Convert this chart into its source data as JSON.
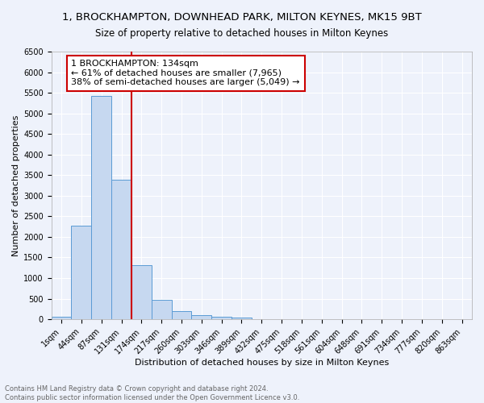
{
  "title": "1, BROCKHAMPTON, DOWNHEAD PARK, MILTON KEYNES, MK15 9BT",
  "subtitle": "Size of property relative to detached houses in Milton Keynes",
  "xlabel": "Distribution of detached houses by size in Milton Keynes",
  "ylabel": "Number of detached properties",
  "footnote1": "Contains HM Land Registry data © Crown copyright and database right 2024.",
  "footnote2": "Contains public sector information licensed under the Open Government Licence v3.0.",
  "bar_labels": [
    "1sqm",
    "44sqm",
    "87sqm",
    "131sqm",
    "174sqm",
    "217sqm",
    "260sqm",
    "303sqm",
    "346sqm",
    "389sqm",
    "432sqm",
    "475sqm",
    "518sqm",
    "561sqm",
    "604sqm",
    "648sqm",
    "691sqm",
    "734sqm",
    "777sqm",
    "820sqm",
    "863sqm"
  ],
  "bar_values": [
    60,
    2280,
    5430,
    3380,
    1310,
    480,
    195,
    95,
    60,
    50,
    0,
    0,
    0,
    0,
    0,
    0,
    0,
    0,
    0,
    0,
    0
  ],
  "bar_color": "#c6d8f0",
  "bar_edge_color": "#5b9bd5",
  "background_color": "#eef2fb",
  "grid_color": "#ffffff",
  "vline_color": "#cc0000",
  "annotation_text": "1 BROCKHAMPTON: 134sqm\n← 61% of detached houses are smaller (7,965)\n38% of semi-detached houses are larger (5,049) →",
  "annotation_box_color": "#ffffff",
  "annotation_box_edge": "#cc0000",
  "ylim": [
    0,
    6500
  ],
  "yticks": [
    0,
    500,
    1000,
    1500,
    2000,
    2500,
    3000,
    3500,
    4000,
    4500,
    5000,
    5500,
    6000,
    6500
  ],
  "title_fontsize": 9.5,
  "subtitle_fontsize": 8.5,
  "xlabel_fontsize": 8,
  "ylabel_fontsize": 8,
  "tick_fontsize": 7,
  "annot_fontsize": 8,
  "footnote_fontsize": 6
}
